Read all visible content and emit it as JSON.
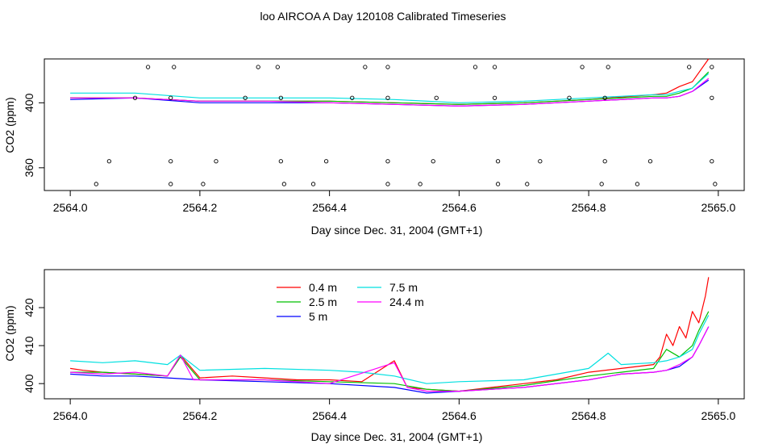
{
  "figure": {
    "title": "loo AIRCOA A  Day 120108  Calibrated Timeseries"
  },
  "chart_data": [
    {
      "type": "line",
      "title": "",
      "xlabel": "Day since Dec. 31, 2004 (GMT+1)",
      "ylabel": "CO2 (ppm)",
      "xlim": [
        2563.96,
        2565.04
      ],
      "ylim": [
        346,
        427
      ],
      "xticks": [
        2564.0,
        2564.2,
        2564.4,
        2564.6,
        2564.8,
        2565.0
      ],
      "xtick_labels": [
        "2564.0",
        "2564.2",
        "2564.4",
        "2564.6",
        "2564.8",
        "2565.0"
      ],
      "yticks": [
        360,
        400
      ],
      "ytick_labels": [
        "360",
        "400"
      ],
      "legend": "none",
      "series": [
        {
          "color": "#ff0000",
          "x": [
            2564.0,
            2564.1,
            2564.2,
            2564.3,
            2564.4,
            2564.5,
            2564.6,
            2564.7,
            2564.8,
            2564.9,
            2564.92,
            2564.94,
            2564.96,
            2564.985
          ],
          "values": [
            403,
            403,
            401,
            401,
            401,
            400,
            399,
            400,
            402,
            405,
            406,
            410,
            413,
            427
          ]
        },
        {
          "color": "#00c000",
          "x": [
            2564.0,
            2564.1,
            2564.2,
            2564.3,
            2564.4,
            2564.5,
            2564.6,
            2564.7,
            2564.8,
            2564.9,
            2564.92,
            2564.94,
            2564.96,
            2564.985
          ],
          "values": [
            403,
            403,
            401,
            401,
            401,
            400,
            399,
            400,
            402,
            404,
            404,
            406,
            409,
            419
          ]
        },
        {
          "color": "#0000ff",
          "x": [
            2564.0,
            2564.1,
            2564.2,
            2564.3,
            2564.4,
            2564.5,
            2564.6,
            2564.7,
            2564.8,
            2564.9,
            2564.92,
            2564.94,
            2564.96,
            2564.985
          ],
          "values": [
            402,
            403,
            400,
            400,
            400,
            399,
            398,
            399,
            401,
            403,
            403,
            404,
            407,
            414
          ]
        },
        {
          "color": "#00e0e0",
          "x": [
            2564.0,
            2564.1,
            2564.2,
            2564.3,
            2564.4,
            2564.5,
            2564.6,
            2564.7,
            2564.8,
            2564.9,
            2564.92,
            2564.94,
            2564.96,
            2564.985
          ],
          "values": [
            406,
            406,
            403,
            403,
            403,
            402,
            400,
            401,
            403,
            405,
            405,
            407,
            409,
            418
          ]
        },
        {
          "color": "#ff00ff",
          "x": [
            2564.0,
            2564.1,
            2564.2,
            2564.3,
            2564.4,
            2564.5,
            2564.6,
            2564.7,
            2564.8,
            2564.9,
            2564.92,
            2564.94,
            2564.96,
            2564.985
          ],
          "values": [
            403,
            403,
            401,
            401,
            400,
            399,
            398,
            399,
            401,
            403,
            403,
            404,
            407,
            415
          ]
        }
      ],
      "markers": {
        "color": "#000000",
        "points": [
          [
            2564.12,
            422
          ],
          [
            2564.16,
            422
          ],
          [
            2564.29,
            422
          ],
          [
            2564.32,
            422
          ],
          [
            2564.455,
            422
          ],
          [
            2564.49,
            422
          ],
          [
            2564.625,
            422
          ],
          [
            2564.655,
            422
          ],
          [
            2564.79,
            422
          ],
          [
            2564.83,
            422
          ],
          [
            2564.955,
            422
          ],
          [
            2564.99,
            422
          ],
          [
            2564.1,
            403
          ],
          [
            2564.155,
            403
          ],
          [
            2564.27,
            403
          ],
          [
            2564.325,
            403
          ],
          [
            2564.435,
            403
          ],
          [
            2564.49,
            403
          ],
          [
            2564.565,
            403
          ],
          [
            2564.655,
            403
          ],
          [
            2564.77,
            403
          ],
          [
            2564.825,
            403
          ],
          [
            2564.99,
            403
          ],
          [
            2564.06,
            364
          ],
          [
            2564.155,
            364
          ],
          [
            2564.225,
            364
          ],
          [
            2564.325,
            364
          ],
          [
            2564.395,
            364
          ],
          [
            2564.49,
            364
          ],
          [
            2564.56,
            364
          ],
          [
            2564.66,
            364
          ],
          [
            2564.725,
            364
          ],
          [
            2564.825,
            364
          ],
          [
            2564.895,
            364
          ],
          [
            2564.99,
            364
          ],
          [
            2564.04,
            350
          ],
          [
            2564.155,
            350
          ],
          [
            2564.205,
            350
          ],
          [
            2564.33,
            350
          ],
          [
            2564.375,
            350
          ],
          [
            2564.49,
            350
          ],
          [
            2564.54,
            350
          ],
          [
            2564.66,
            350
          ],
          [
            2564.705,
            350
          ],
          [
            2564.82,
            350
          ],
          [
            2564.875,
            350
          ],
          [
            2564.995,
            350
          ]
        ]
      }
    },
    {
      "type": "line",
      "title": "",
      "xlabel": "Day since Dec. 31, 2004 (GMT+1)",
      "ylabel": "CO2 (ppm)",
      "xlim": [
        2563.96,
        2565.04
      ],
      "ylim": [
        396,
        430
      ],
      "xticks": [
        2564.0,
        2564.2,
        2564.4,
        2564.6,
        2564.8,
        2565.0
      ],
      "xtick_labels": [
        "2564.0",
        "2564.2",
        "2564.4",
        "2564.6",
        "2564.8",
        "2565.0"
      ],
      "yticks": [
        400,
        410,
        420
      ],
      "ytick_labels": [
        "400",
        "410",
        "420"
      ],
      "legend": "top-left-center",
      "series": [
        {
          "name": "0.4 m",
          "color": "#ff0000",
          "x": [
            2564.0,
            2564.02,
            2564.05,
            2564.1,
            2564.15,
            2564.17,
            2564.2,
            2564.25,
            2564.3,
            2564.35,
            2564.4,
            2564.45,
            2564.5,
            2564.52,
            2564.55,
            2564.6,
            2564.65,
            2564.7,
            2564.75,
            2564.8,
            2564.85,
            2564.9,
            2564.91,
            2564.92,
            2564.93,
            2564.94,
            2564.95,
            2564.96,
            2564.97,
            2564.98,
            2564.985
          ],
          "values": [
            404,
            403.5,
            403,
            402.5,
            402,
            407.5,
            401.5,
            402,
            401.5,
            401,
            401,
            400.5,
            406,
            399,
            398.5,
            398,
            399,
            400,
            401,
            403,
            404,
            405,
            407,
            413,
            410,
            415,
            412,
            419,
            416,
            423,
            428
          ]
        },
        {
          "name": "2.5 m",
          "color": "#00c000",
          "x": [
            2564.0,
            2564.05,
            2564.1,
            2564.15,
            2564.17,
            2564.2,
            2564.3,
            2564.4,
            2564.5,
            2564.55,
            2564.6,
            2564.7,
            2564.8,
            2564.85,
            2564.9,
            2564.92,
            2564.94,
            2564.96,
            2564.97,
            2564.985
          ],
          "values": [
            403,
            403,
            402.5,
            402,
            407,
            401,
            401,
            400.5,
            400,
            398.5,
            398,
            399.5,
            402,
            403,
            404,
            409,
            407,
            410,
            414,
            419
          ]
        },
        {
          "name": "5 m",
          "color": "#0000ff",
          "x": [
            2564.0,
            2564.05,
            2564.1,
            2564.15,
            2564.2,
            2564.3,
            2564.4,
            2564.5,
            2564.55,
            2564.6,
            2564.7,
            2564.8,
            2564.85,
            2564.9,
            2564.92,
            2564.94,
            2564.96,
            2564.97,
            2564.985
          ],
          "values": [
            402.5,
            402,
            402,
            401.5,
            401,
            400.5,
            400,
            399,
            397.5,
            398,
            399,
            401,
            402.5,
            403,
            403.5,
            404.5,
            407,
            410,
            415
          ]
        },
        {
          "name": "7.5 m",
          "color": "#00e0e0",
          "x": [
            2564.0,
            2564.05,
            2564.1,
            2564.15,
            2564.17,
            2564.2,
            2564.3,
            2564.4,
            2564.45,
            2564.5,
            2564.55,
            2564.6,
            2564.7,
            2564.8,
            2564.83,
            2564.85,
            2564.9,
            2564.92,
            2564.94,
            2564.96,
            2564.97,
            2564.985
          ],
          "values": [
            406,
            405.5,
            406,
            405,
            407.5,
            403.5,
            404,
            403.5,
            403,
            402,
            400,
            400.5,
            401,
            404,
            408,
            405,
            405.5,
            406,
            407,
            409,
            413,
            418
          ]
        },
        {
          "name": "24.4 m",
          "color": "#ff00ff",
          "x": [
            2564.0,
            2564.05,
            2564.1,
            2564.15,
            2564.17,
            2564.19,
            2564.2,
            2564.3,
            2564.4,
            2564.5,
            2564.52,
            2564.55,
            2564.6,
            2564.7,
            2564.8,
            2564.85,
            2564.9,
            2564.92,
            2564.94,
            2564.96,
            2564.97,
            2564.985
          ],
          "values": [
            403,
            402.5,
            403,
            402,
            407.5,
            401,
            401,
            401,
            400,
            405.5,
            399,
            398,
            398,
            399,
            401,
            402.5,
            403,
            403.5,
            405,
            407,
            410,
            415
          ]
        }
      ]
    }
  ]
}
